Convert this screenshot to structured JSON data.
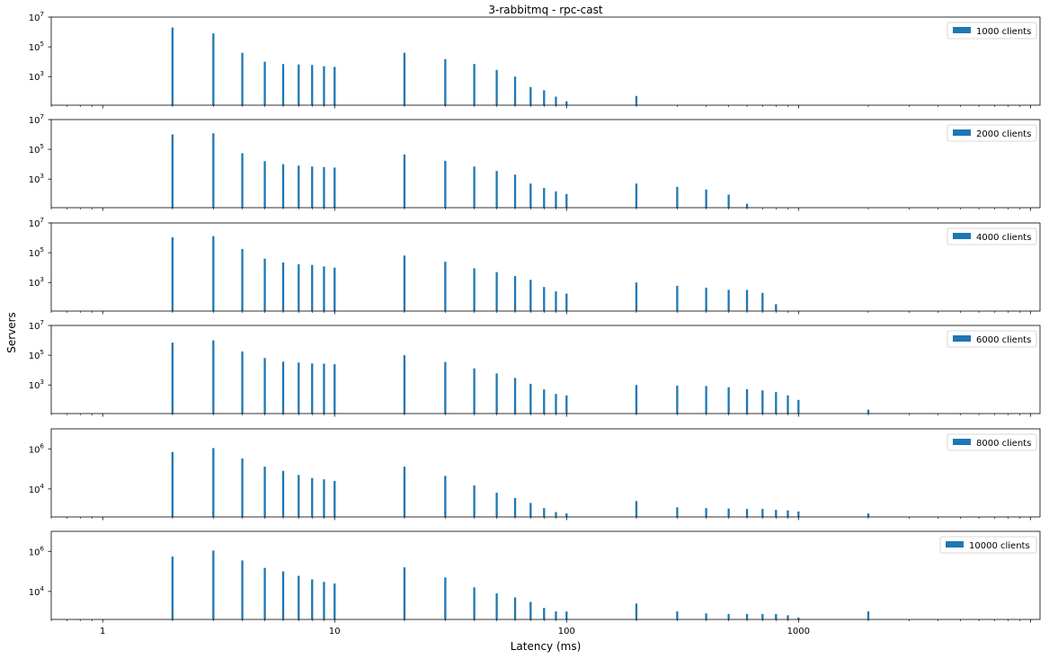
{
  "chart_data": {
    "type": "bar",
    "title": "3-rabbitmq - rpc-cast",
    "xlabel": "Latency (ms)",
    "ylabel": "Servers",
    "xscale": "log",
    "yscale": "log",
    "xlim": [
      0.6,
      11000
    ],
    "bar_color": "#1f77b4",
    "x_tick_labels": [
      {
        "value": 1,
        "label": "1"
      },
      {
        "value": 10,
        "label": "10"
      },
      {
        "value": 100,
        "label": "100"
      },
      {
        "value": 1000,
        "label": "1000"
      }
    ],
    "panels": [
      {
        "name": "1000 clients",
        "ylim": [
          12,
          10000000
        ],
        "y_ticks": [
          {
            "value": 1000,
            "base": "10",
            "exp": "3"
          },
          {
            "value": 100000,
            "base": "10",
            "exp": "5"
          },
          {
            "value": 10000000,
            "base": "10",
            "exp": "7"
          }
        ],
        "x": [
          2,
          3,
          4,
          5,
          6,
          7,
          8,
          9,
          10,
          20,
          30,
          40,
          50,
          60,
          70,
          80,
          90,
          100,
          200
        ],
        "values": [
          2000000,
          800000,
          40000,
          10000,
          7000,
          6500,
          6000,
          5000,
          4500,
          40000,
          15000,
          7000,
          2800,
          1000,
          200,
          120,
          45,
          22,
          50
        ]
      },
      {
        "name": "2000 clients",
        "ylim": [
          12,
          10000000
        ],
        "y_ticks": [
          {
            "value": 1000,
            "base": "10",
            "exp": "3"
          },
          {
            "value": 100000,
            "base": "10",
            "exp": "5"
          },
          {
            "value": 10000000,
            "base": "10",
            "exp": "7"
          }
        ],
        "x": [
          2,
          3,
          4,
          5,
          6,
          7,
          8,
          9,
          10,
          20,
          30,
          40,
          50,
          60,
          70,
          80,
          90,
          100,
          200,
          300,
          400,
          500,
          600
        ],
        "values": [
          1000000,
          1200000,
          55000,
          16000,
          10000,
          8000,
          7000,
          6500,
          6000,
          45000,
          17000,
          7000,
          3500,
          2000,
          500,
          250,
          150,
          100,
          500,
          300,
          200,
          90,
          22
        ]
      },
      {
        "name": "4000 clients",
        "ylim": [
          12,
          10000000
        ],
        "y_ticks": [
          {
            "value": 1000,
            "base": "10",
            "exp": "3"
          },
          {
            "value": 100000,
            "base": "10",
            "exp": "5"
          },
          {
            "value": 10000000,
            "base": "10",
            "exp": "7"
          }
        ],
        "x": [
          2,
          3,
          4,
          5,
          6,
          7,
          8,
          9,
          10,
          20,
          30,
          40,
          50,
          60,
          70,
          80,
          90,
          100,
          200,
          300,
          400,
          500,
          600,
          700,
          800
        ],
        "values": [
          1100000,
          1300000,
          180000,
          40000,
          22000,
          17000,
          15000,
          12000,
          10000,
          65000,
          25000,
          9000,
          5000,
          2700,
          1500,
          500,
          250,
          180,
          1000,
          600,
          450,
          320,
          320,
          200,
          35
        ]
      },
      {
        "name": "6000 clients",
        "ylim": [
          12,
          10000000
        ],
        "y_ticks": [
          {
            "value": 1000,
            "base": "10",
            "exp": "3"
          },
          {
            "value": 100000,
            "base": "10",
            "exp": "5"
          },
          {
            "value": 10000000,
            "base": "10",
            "exp": "7"
          }
        ],
        "x": [
          2,
          3,
          4,
          5,
          6,
          7,
          8,
          9,
          10,
          20,
          30,
          40,
          50,
          60,
          70,
          80,
          90,
          100,
          200,
          300,
          400,
          500,
          600,
          700,
          800,
          900,
          1000,
          2000
        ],
        "values": [
          700000,
          1000000,
          180000,
          65000,
          37000,
          32000,
          28000,
          27000,
          25000,
          100000,
          35000,
          13000,
          6000,
          3000,
          1200,
          500,
          250,
          200,
          1000,
          900,
          850,
          700,
          520,
          430,
          330,
          200,
          100,
          22
        ]
      },
      {
        "name": "8000 clients",
        "ylim": [
          400,
          10000000
        ],
        "y_ticks": [
          {
            "value": 10000,
            "base": "10",
            "exp": "4"
          },
          {
            "value": 1000000,
            "base": "10",
            "exp": "6"
          }
        ],
        "x": [
          2,
          3,
          4,
          5,
          6,
          7,
          8,
          9,
          10,
          20,
          30,
          40,
          50,
          60,
          70,
          80,
          90,
          100,
          200,
          300,
          400,
          500,
          600,
          700,
          800,
          900,
          1000,
          2000
        ],
        "values": [
          700000,
          1100000,
          330000,
          130000,
          80000,
          50000,
          35000,
          30000,
          25000,
          130000,
          45000,
          15000,
          6500,
          3500,
          2000,
          1100,
          700,
          600,
          2500,
          1200,
          1100,
          1050,
          1000,
          1000,
          900,
          850,
          750,
          600
        ]
      },
      {
        "name": "10000 clients",
        "ylim": [
          400,
          10000000
        ],
        "y_ticks": [
          {
            "value": 10000,
            "base": "10",
            "exp": "4"
          },
          {
            "value": 1000000,
            "base": "10",
            "exp": "6"
          }
        ],
        "x": [
          2,
          3,
          4,
          5,
          6,
          7,
          8,
          9,
          10,
          20,
          30,
          40,
          50,
          60,
          70,
          80,
          90,
          100,
          200,
          300,
          400,
          500,
          600,
          700,
          800,
          900,
          1000,
          2000
        ],
        "values": [
          550000,
          1100000,
          350000,
          150000,
          100000,
          60000,
          40000,
          30000,
          25000,
          160000,
          50000,
          16000,
          8000,
          5000,
          3000,
          1500,
          1000,
          1000,
          2500,
          1000,
          800,
          750,
          750,
          750,
          750,
          650,
          500,
          1000
        ]
      }
    ]
  }
}
